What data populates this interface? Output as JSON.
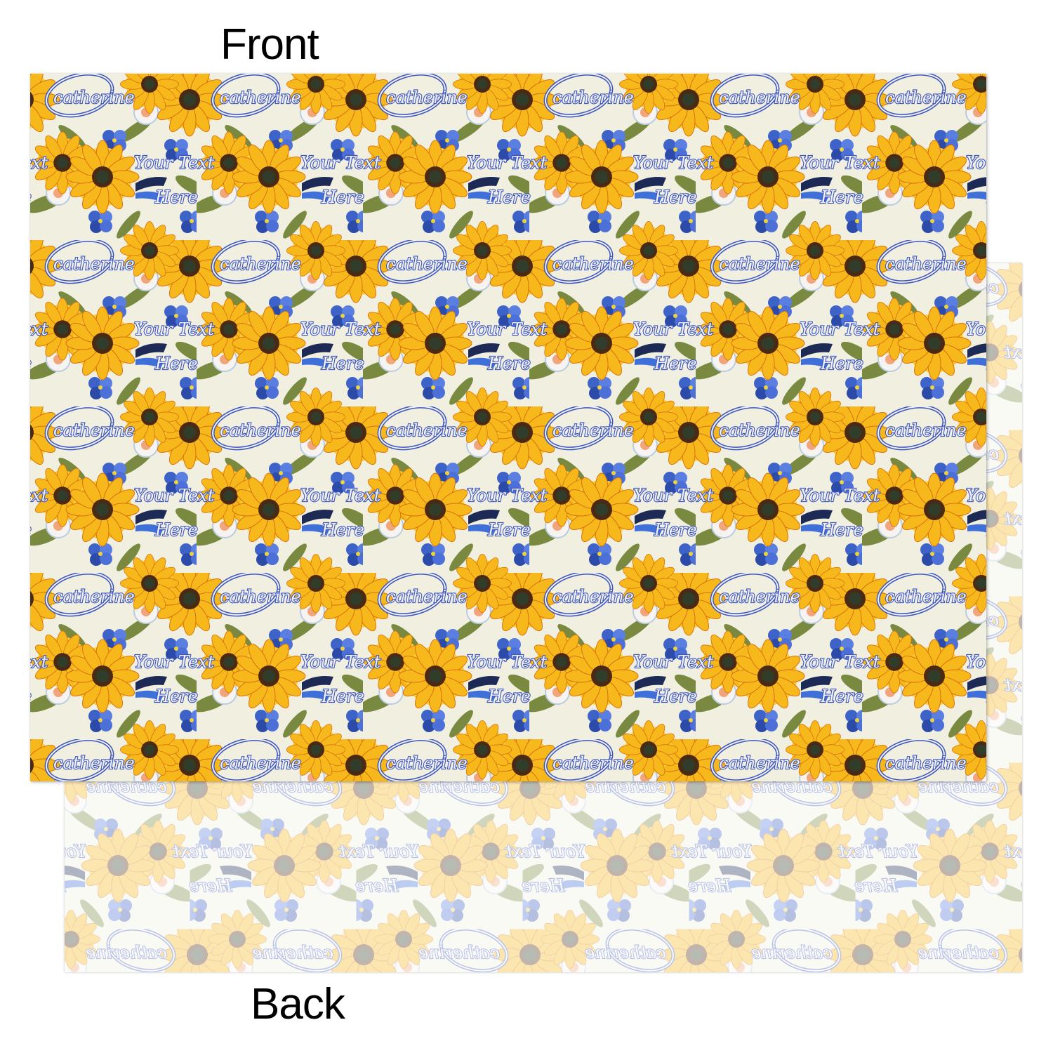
{
  "labels": {
    "front": "Front",
    "back": "Back"
  },
  "pattern": {
    "name_text": "catherine",
    "line1": "Your Text",
    "line2": "Here",
    "background_color": "#f1efe0",
    "sunflower_petal_color": "#f2a413",
    "sunflower_center_color": "#4a2a12",
    "blue_flower_color": "#3d63c9",
    "text_outline_color": "#3f56b8",
    "leaf_color": "#6b7f2e"
  },
  "back_sheet": {
    "opacity": 0.35,
    "mirrored": true
  }
}
